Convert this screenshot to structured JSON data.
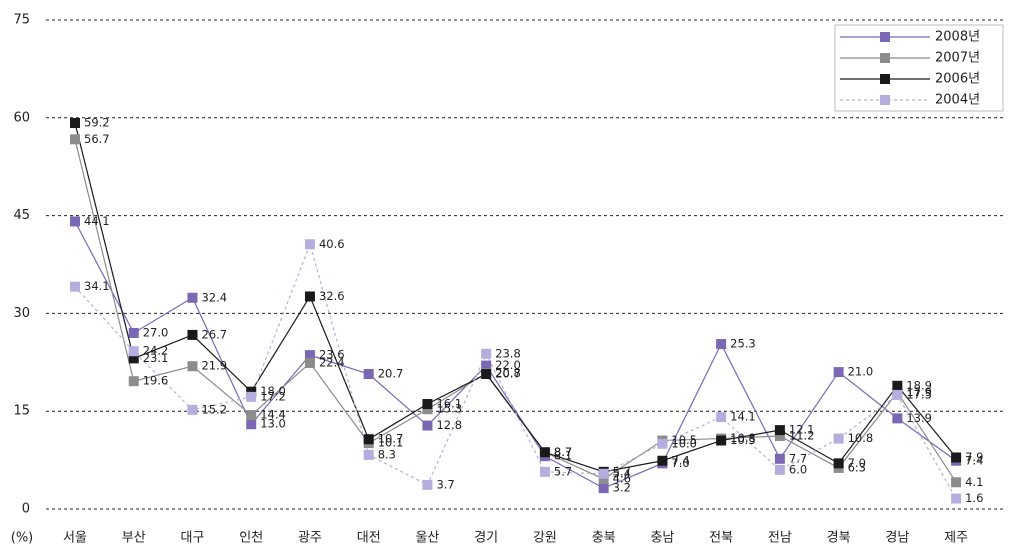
{
  "chart_data": {
    "type": "line",
    "ylabel": "(%)",
    "categories": [
      "서울",
      "부산",
      "대구",
      "인천",
      "광주",
      "대전",
      "울산",
      "경기",
      "강원",
      "충북",
      "충남",
      "전북",
      "전남",
      "경북",
      "경남",
      "제주"
    ],
    "series": [
      {
        "name": "2008년",
        "color": "#7b68b5",
        "dashed": false,
        "values": [
          44.1,
          27.0,
          32.4,
          13.0,
          23.6,
          20.7,
          12.8,
          22.0,
          8.1,
          3.2,
          7.0,
          25.3,
          7.7,
          21.0,
          13.9,
          7.4
        ],
        "value_labels": [
          "44.1",
          "27.0",
          "32.4",
          "13.0",
          "23.6",
          "20.7",
          "12.8",
          "22.0",
          "8.1",
          "3.2",
          "7.0",
          "25.3",
          "7.7",
          "21.0",
          "13.9",
          "7.4"
        ]
      },
      {
        "name": "2007년",
        "color": "#8c8c8c",
        "dashed": false,
        "values": [
          56.7,
          19.6,
          21.9,
          14.4,
          22.4,
          10.1,
          15.3,
          20.8,
          8.7,
          4.6,
          10.5,
          10.8,
          11.2,
          6.3,
          17.9,
          4.1
        ],
        "value_labels": [
          "56.7",
          "19.6",
          "21.9",
          "14.4",
          "22.4",
          "10.1",
          "15.3",
          "20.8",
          "8.7",
          "4.6",
          "10.5",
          "10.8",
          "11.2",
          "6.3",
          "17.9",
          "4.1"
        ]
      },
      {
        "name": "2006년",
        "color": "#1a1a1a",
        "dashed": false,
        "values": [
          59.2,
          23.1,
          26.7,
          18.0,
          32.6,
          10.7,
          16.1,
          20.7,
          8.7,
          5.7,
          7.4,
          10.5,
          12.1,
          7.0,
          18.9,
          7.9
        ],
        "value_labels": [
          "59.2",
          "23.1",
          "26.7",
          "18.0",
          "32.6",
          "10.7",
          "16.1",
          "20.7",
          "8.7",
          "5.7",
          "7.4",
          "10.5",
          "12.1",
          "7.0",
          "18.9",
          "7.9"
        ]
      },
      {
        "name": "2004년",
        "color": "#b5addd",
        "dashed": true,
        "values": [
          34.1,
          24.2,
          15.2,
          17.2,
          40.6,
          8.3,
          3.7,
          23.8,
          5.7,
          5.4,
          10.0,
          14.1,
          6.0,
          10.8,
          17.5,
          1.6
        ],
        "value_labels": [
          "34.1",
          "24.2",
          "15.2",
          "17.2",
          "40.6",
          "8.3",
          "3.7",
          "23.8",
          "5.7",
          "5.4",
          "10.0",
          "14.1",
          "6.0",
          "10.8",
          "17.5",
          "1.6"
        ]
      }
    ],
    "ylim": [
      0,
      75
    ],
    "yticks": [
      0,
      15,
      30,
      45,
      60,
      75
    ],
    "grid": true,
    "legend": "upper right"
  }
}
